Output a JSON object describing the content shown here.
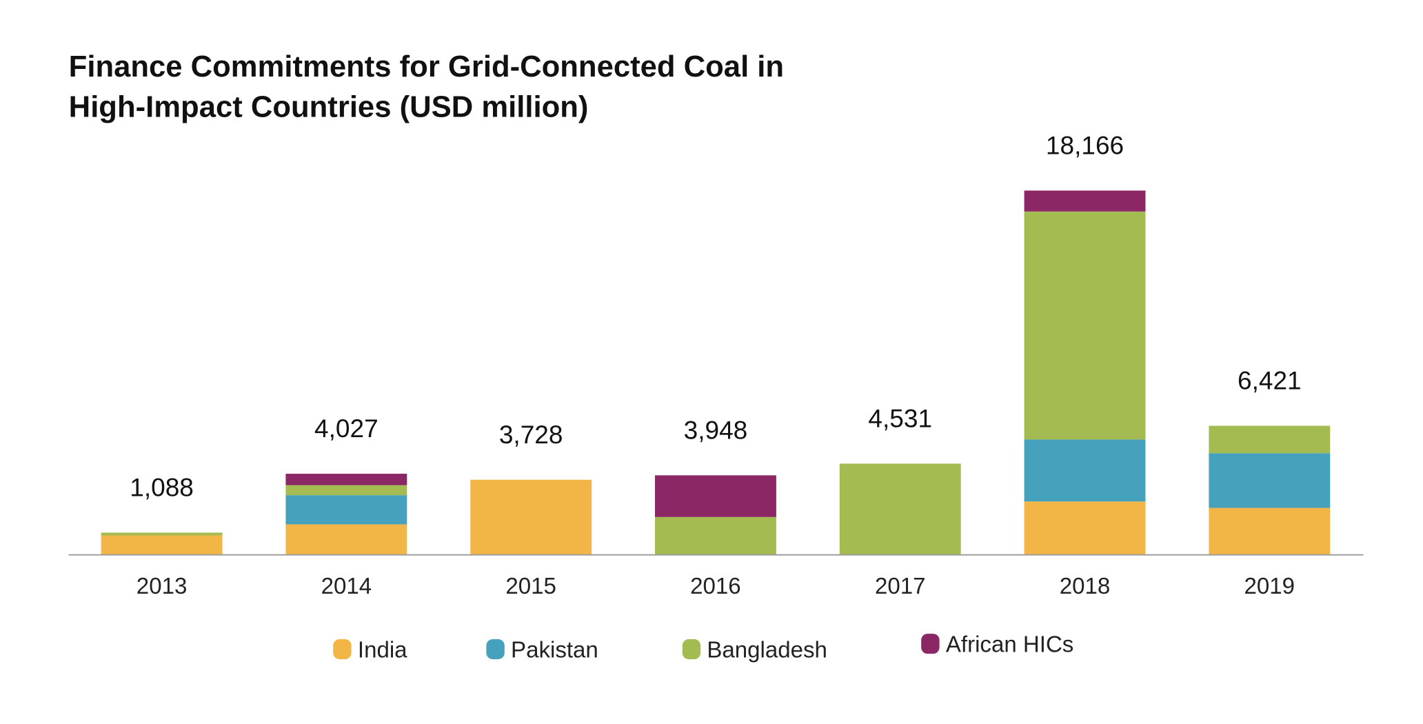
{
  "chart_data": {
    "type": "bar",
    "stacked": true,
    "title_lines": [
      "Finance Commitments for Grid-Connected Coal in",
      "High-Impact Countries (USD million)"
    ],
    "categories": [
      "2013",
      "2014",
      "2015",
      "2016",
      "2017",
      "2018",
      "2019"
    ],
    "totals": [
      "1,088",
      "4,027",
      "3,728",
      "3,948",
      "4,531",
      "18,166",
      "6,421"
    ],
    "series": [
      {
        "name": "India",
        "color": "#F2B646",
        "values": [
          947,
          1500,
          3728,
          0,
          0,
          2641,
          2322
        ]
      },
      {
        "name": "Pakistan",
        "color": "#46A1BC",
        "values": [
          0,
          1457,
          0,
          0,
          0,
          3096,
          2732
        ]
      },
      {
        "name": "Bangladesh",
        "color": "#A3BB51",
        "values": [
          141,
          500,
          0,
          1867,
          4531,
          11383,
          1367
        ]
      },
      {
        "name": "African HICs",
        "color": "#8B2764",
        "values": [
          0,
          570,
          0,
          2081,
          0,
          1046,
          0
        ]
      }
    ],
    "ylim": [
      0,
      18166
    ],
    "grid": false,
    "y_axis_shown": false,
    "legend_position": "bottom"
  }
}
